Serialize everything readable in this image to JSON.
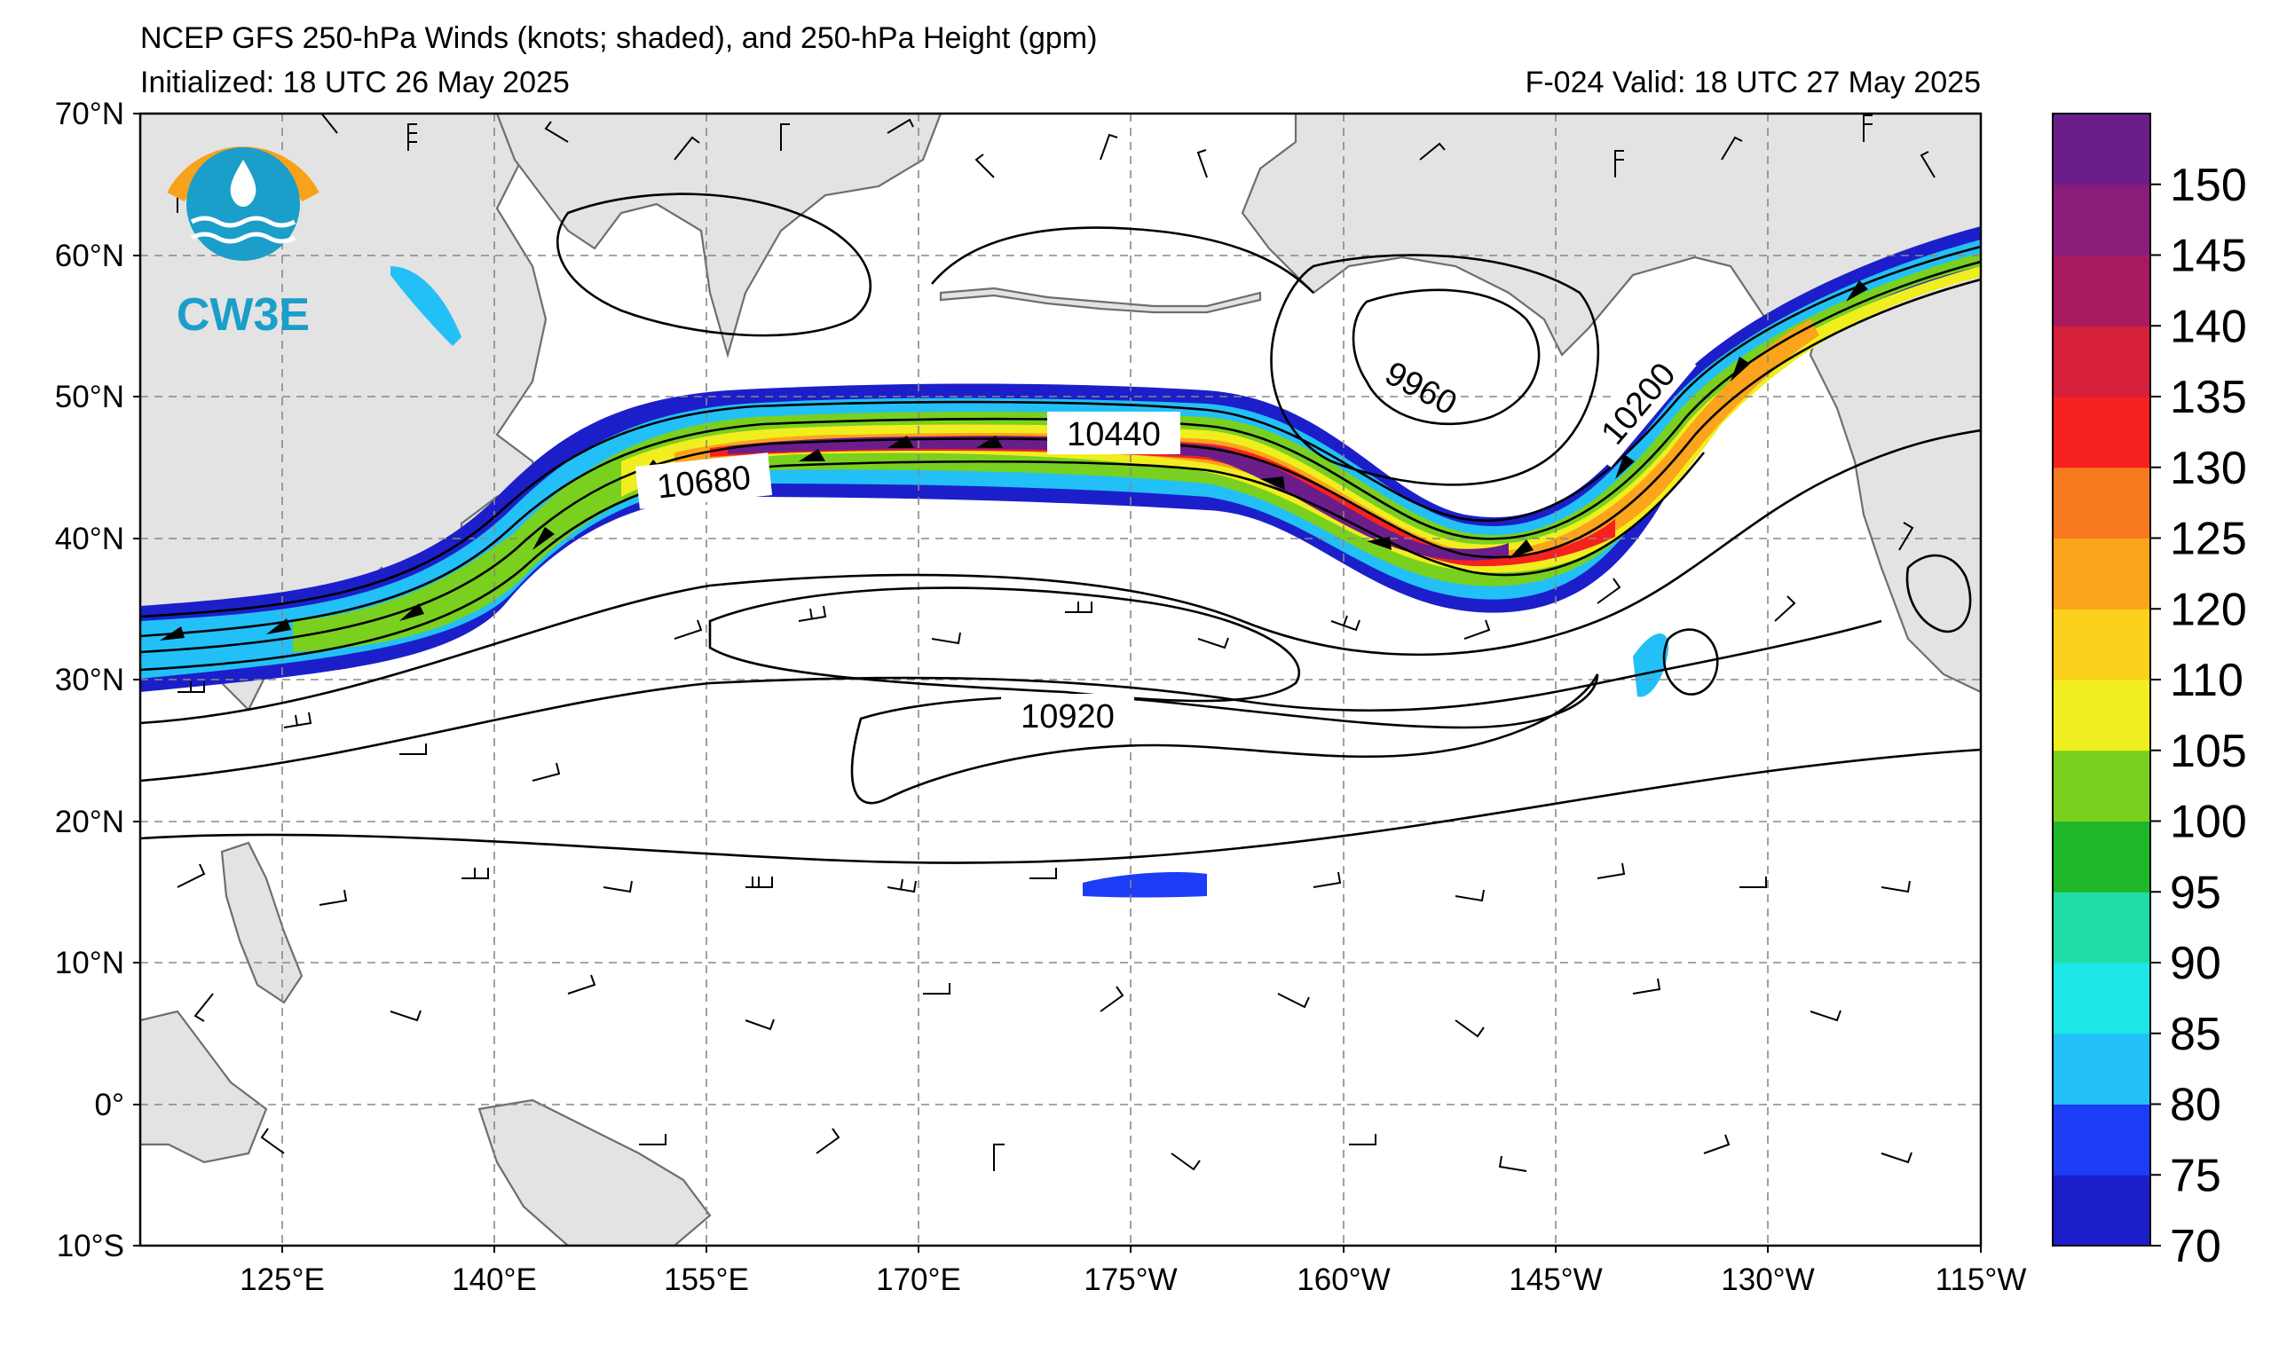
{
  "header": {
    "title": "NCEP GFS 250-hPa Winds (knots; shaded), and 250-hPa Height (gpm)",
    "initialized": "Initialized: 18 UTC 26 May 2025",
    "valid": "F-024  Valid: 18 UTC 27 May 2025"
  },
  "logo": {
    "text": "CW3E",
    "colors": {
      "sun": "#f7a21b",
      "water": "#1b9ec9"
    }
  },
  "map": {
    "projection": "cylindrical equidistant",
    "lon_range": "112°E to 115°W",
    "lat_range": "10°S to 70°N",
    "lat_labels": [
      "70°N",
      "60°N",
      "50°N",
      "40°N",
      "30°N",
      "20°N",
      "10°N",
      "0°",
      "10°S"
    ],
    "lon_labels": [
      "125°E",
      "140°E",
      "155°E",
      "170°E",
      "175°W",
      "160°W",
      "145°W",
      "130°W",
      "115°W"
    ],
    "gridlines": "dashed",
    "land_color": "#e3e3e3",
    "ocean_color": "#ffffff",
    "contour_labels": [
      "10680",
      "10440",
      "9960",
      "10200",
      "10920"
    ]
  },
  "colorbar": {
    "units": "knots",
    "levels": [
      70,
      75,
      80,
      85,
      90,
      95,
      100,
      105,
      110,
      120,
      125,
      130,
      135,
      140,
      145,
      150
    ],
    "tick_labels": [
      "70",
      "75",
      "80",
      "85",
      "90",
      "95",
      "100",
      "105",
      "110",
      "120",
      "125",
      "130",
      "135",
      "140",
      "145",
      "150"
    ],
    "colors": [
      "#1c1fc9",
      "#1d3cf6",
      "#22c0f7",
      "#1de6e6",
      "#22dca6",
      "#1fb627",
      "#79d01f",
      "#f0ee1e",
      "#fbd11d",
      "#fba41c",
      "#f77a1f",
      "#f6221f",
      "#d61f3a",
      "#a81a5f",
      "#8a1c7a",
      "#6b1d8a"
    ]
  }
}
